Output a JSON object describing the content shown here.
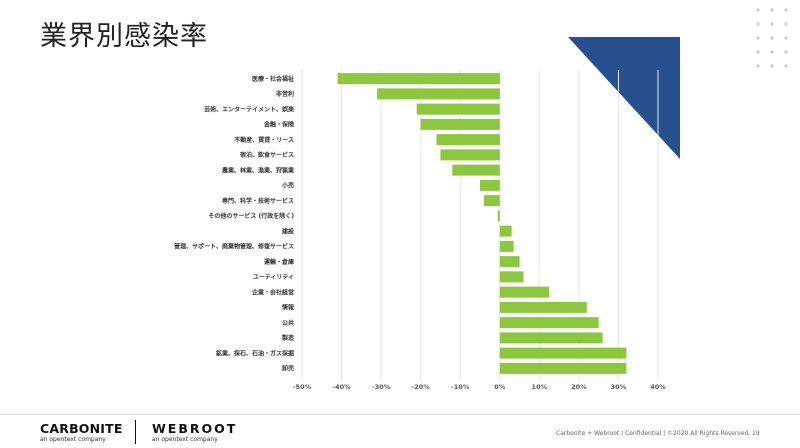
{
  "page": {
    "title": "業界別感染率"
  },
  "chart_data": {
    "type": "bar",
    "orientation": "horizontal",
    "categories": [
      "医療・社会福祉",
      "非営利",
      "芸術、エンターテイメント、娯楽",
      "金融・保険",
      "不動産、賃貸・リース",
      "宿泊、飲食サービス",
      "農業、林業、漁業、狩猟業",
      "小売",
      "専門、科学・技術サービス",
      "その他のサービス (行政を除く)",
      "建設",
      "管理、サポート、廃棄物管理、修復サービス",
      "運輸・倉庫",
      "ユーティリティ",
      "企業・会社経営",
      "情報",
      "公共",
      "製造",
      "鉱業、採石、石油・ガス採掘",
      "卸売"
    ],
    "values": [
      -41,
      -31,
      -21,
      -20,
      -16,
      -15,
      -12,
      -5,
      -4,
      -0.5,
      3,
      3.5,
      5,
      6,
      12.5,
      22,
      25,
      26,
      32,
      32
    ],
    "xlim": [
      -50,
      40
    ],
    "xticks": [
      "-50%",
      "-40%",
      "-30%",
      "-20%",
      "-10%",
      "0%",
      "10%",
      "20%",
      "30%",
      "40%"
    ],
    "xtick_values": [
      -50,
      -40,
      -30,
      -20,
      -10,
      0,
      10,
      20,
      30,
      40
    ],
    "grid": "vertical",
    "bar_color": "#8dc63f"
  },
  "decor": {
    "triangle_color": "#27508f",
    "dot_color": "#c9ccd2"
  },
  "footer": {
    "logo_left": "CARBONITE",
    "logo_left_sub": "an opentext company",
    "logo_right": "WEBROOT",
    "logo_right_sub": "an opentext company",
    "notice": "Carbonite + Webroot | Confidential | ©2020 All Rights Reserved.",
    "page_number": "19"
  }
}
